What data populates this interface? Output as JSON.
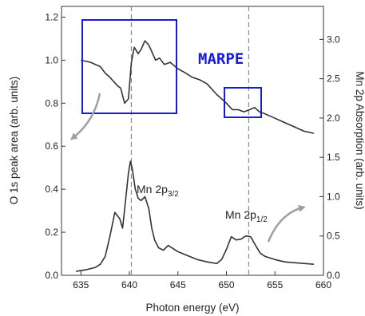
{
  "chart_data": {
    "type": "line",
    "title": "",
    "xlabel": "Photon energy (eV)",
    "ylabel_left": "O 1s peak area (arb. units)",
    "ylabel_right": "Mn 2p Absorption (arb. units)",
    "xlim": [
      633,
      660
    ],
    "ylim_left": [
      0,
      1.25
    ],
    "ylim_right": [
      0,
      3.42
    ],
    "x_ticks": [
      "635",
      "640",
      "645",
      "650",
      "655",
      "660"
    ],
    "y_left_ticks": [
      "0.0",
      "0.2",
      "0.4",
      "0.6",
      "0.8",
      "1.0",
      "1.2"
    ],
    "y_right_ticks": [
      "0.0",
      "0.5",
      "1.0",
      "1.5",
      "2.0",
      "2.5",
      "3.0"
    ],
    "grid": false,
    "legend": "none",
    "colors": {
      "line": "#333333",
      "highlight_box": "#1a1adb",
      "marpe_text": "#1a1adb",
      "arrow": "#a0a0a0",
      "dashed": "#8a8a8a"
    },
    "reference_lines_x": [
      640.2,
      652.3
    ],
    "series": [
      {
        "axis": "left",
        "x": [
          635,
          636,
          637,
          637.5,
          638,
          638.4,
          638.8,
          639.1,
          639.5,
          639.9,
          640.2,
          640.5,
          640.9,
          641.2,
          641.6,
          642,
          642.3,
          642.7,
          643.1,
          643.6,
          644.2,
          645,
          645.8,
          646.5,
          647.2,
          648,
          649,
          650,
          650.6,
          651.2,
          651.8,
          652.4,
          652.9,
          653.4,
          654,
          655,
          656,
          657,
          658,
          659
        ],
        "values": [
          1.0,
          0.99,
          0.97,
          0.94,
          0.92,
          0.9,
          0.88,
          0.87,
          0.8,
          0.82,
          0.99,
          1.06,
          1.03,
          1.05,
          1.09,
          1.07,
          1.04,
          1.0,
          1.01,
          0.98,
          0.99,
          0.96,
          0.94,
          0.92,
          0.91,
          0.89,
          0.84,
          0.8,
          0.77,
          0.77,
          0.76,
          0.77,
          0.78,
          0.76,
          0.75,
          0.73,
          0.71,
          0.69,
          0.67,
          0.66
        ]
      },
      {
        "axis": "right",
        "x": [
          634.5,
          635.5,
          636.5,
          637,
          637.5,
          638,
          638.5,
          639,
          639.3,
          639.6,
          639.9,
          640.1,
          640.3,
          640.6,
          640.9,
          641.2,
          641.6,
          642,
          642.3,
          642.6,
          643,
          643.5,
          644,
          645,
          646,
          647,
          648,
          649,
          649.5,
          650,
          650.5,
          651,
          651.5,
          652,
          652.5,
          653,
          653.5,
          654,
          655,
          656,
          657,
          658,
          659
        ],
        "values": [
          0.05,
          0.07,
          0.1,
          0.14,
          0.24,
          0.5,
          0.8,
          0.72,
          0.6,
          0.95,
          1.3,
          1.45,
          1.35,
          1.1,
          0.98,
          0.95,
          1.0,
          0.85,
          0.6,
          0.45,
          0.35,
          0.32,
          0.38,
          0.3,
          0.25,
          0.2,
          0.17,
          0.15,
          0.2,
          0.33,
          0.49,
          0.45,
          0.46,
          0.5,
          0.49,
          0.38,
          0.28,
          0.24,
          0.2,
          0.17,
          0.16,
          0.15,
          0.14
        ]
      }
    ],
    "annotations": {
      "marpe": "MARPE",
      "peak_32_main": "Mn 2p",
      "peak_32_sub": "3/2",
      "peak_12_main": "Mn 2p",
      "peak_12_sub": "1/2"
    }
  }
}
